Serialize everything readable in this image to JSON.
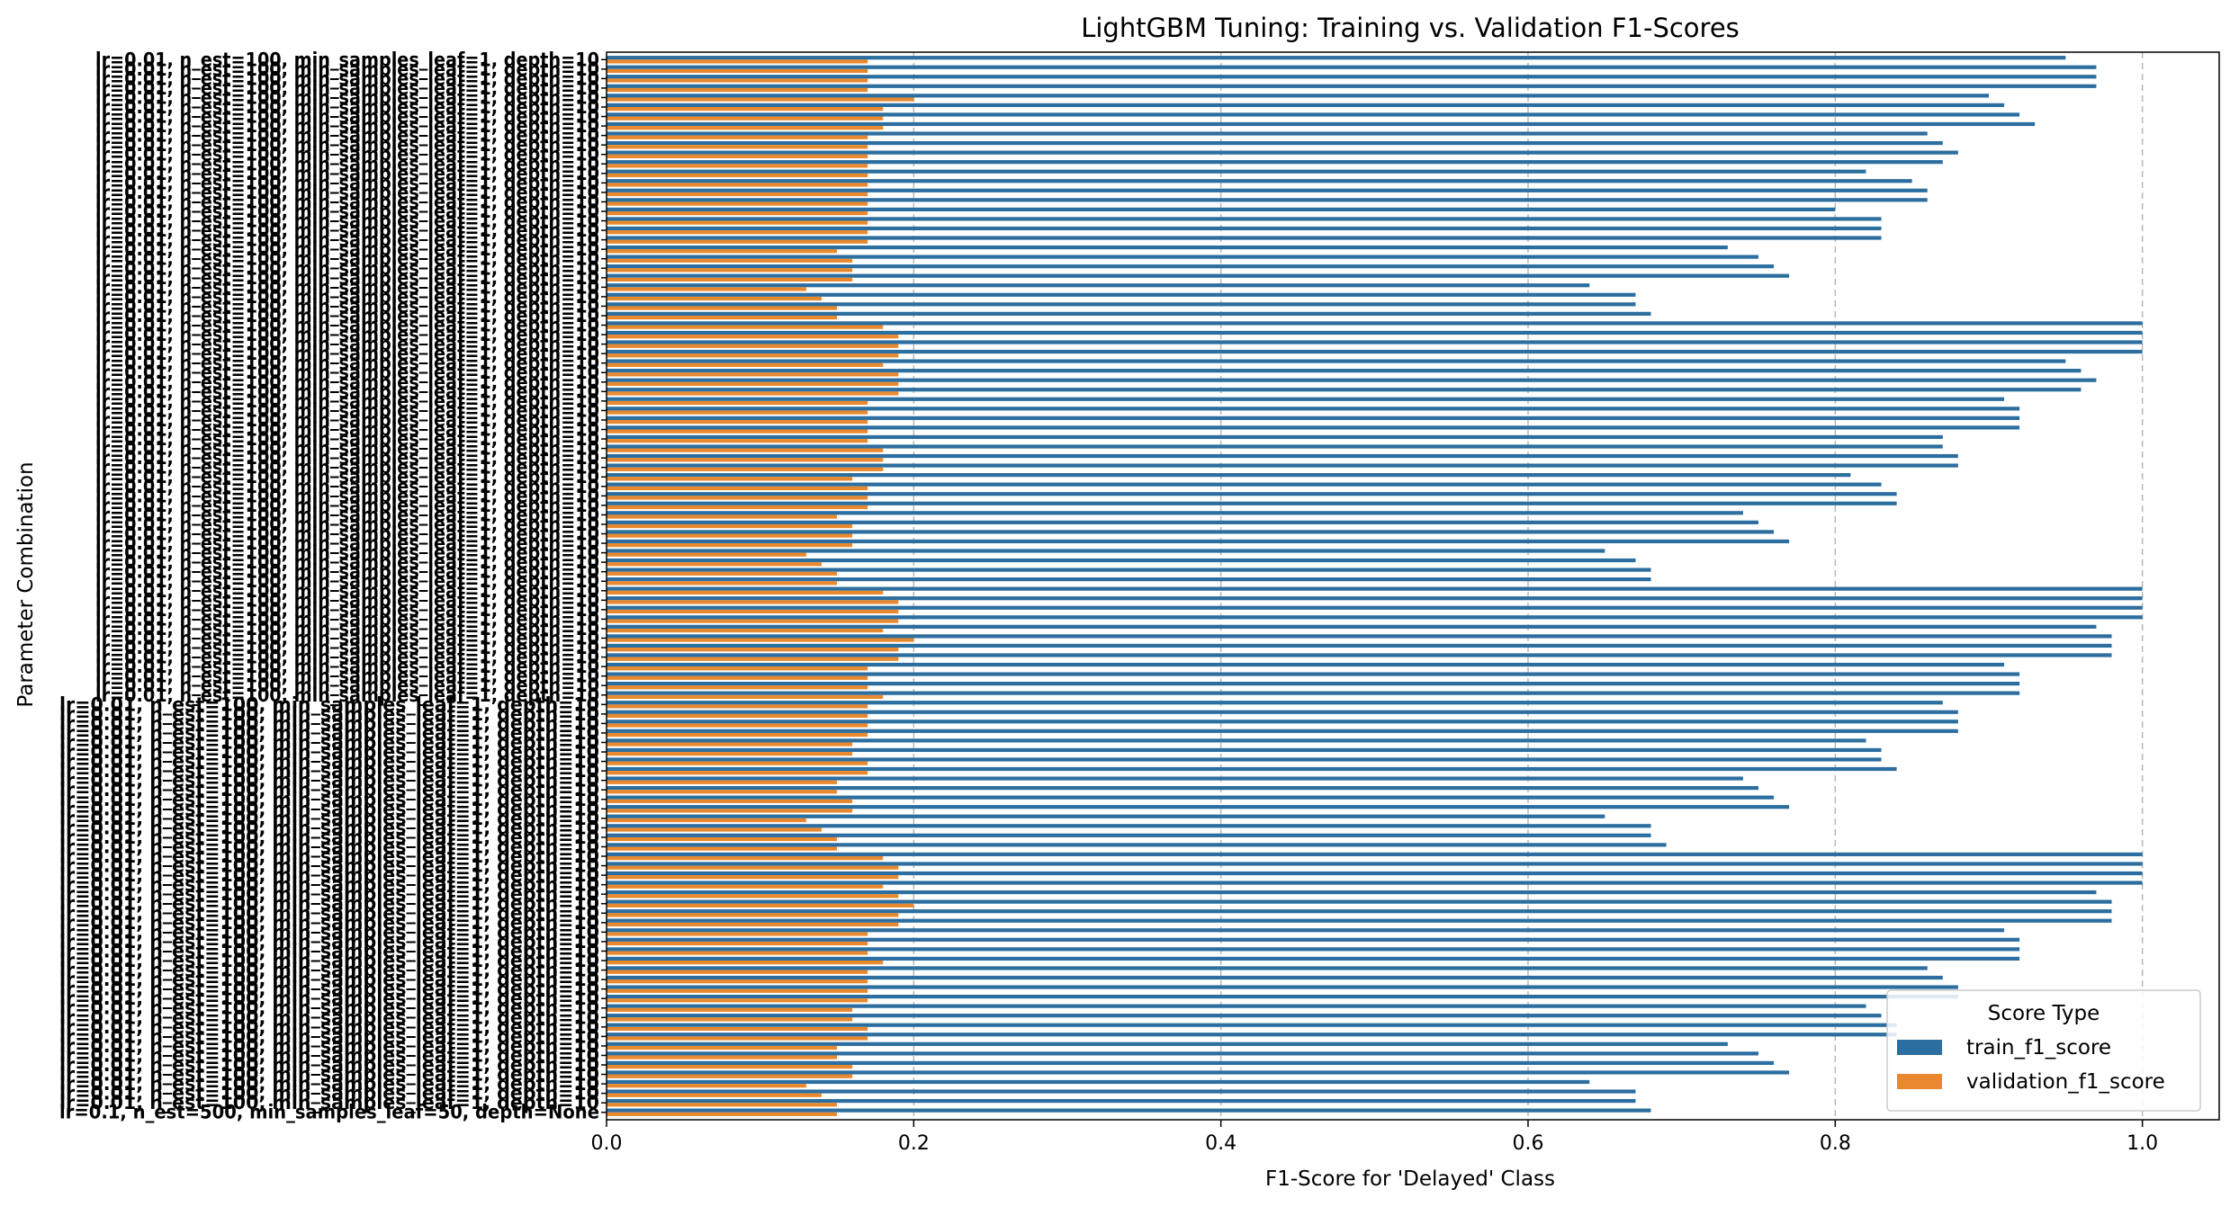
{
  "chart_data": {
    "type": "bar",
    "orientation": "horizontal",
    "title": "LightGBM Tuning: Training vs. Validation F1-Scores",
    "xlabel": "F1-Score for 'Delayed' Class",
    "ylabel": "Parameter Combination",
    "xlim": [
      0,
      1.05
    ],
    "xticks": [
      "0.0",
      "0.2",
      "0.4",
      "0.6",
      "0.8",
      "1.0"
    ],
    "grid": "x-dashed",
    "legend_title": "Score Type",
    "legend_position": "lower-right",
    "category_label_sample": "lr=0.01, n_est=100, min_samples_leaf=1, depth=10",
    "category_label_sample_bottom": "lr=0.1, n_est=500, min_samples_leaf=50, depth=None",
    "series": [
      {
        "name": "train_f1_score",
        "color": "#2c6e9f",
        "values": [
          0.95,
          0.97,
          0.97,
          0.97,
          0.9,
          0.91,
          0.92,
          0.93,
          0.86,
          0.87,
          0.88,
          0.87,
          0.82,
          0.85,
          0.86,
          0.86,
          0.8,
          0.83,
          0.83,
          0.83,
          0.73,
          0.75,
          0.76,
          0.77,
          0.64,
          0.67,
          0.67,
          0.68,
          1.0,
          1.0,
          1.0,
          1.0,
          0.95,
          0.96,
          0.97,
          0.96,
          0.91,
          0.92,
          0.92,
          0.92,
          0.87,
          0.87,
          0.88,
          0.88,
          0.81,
          0.83,
          0.84,
          0.84,
          0.74,
          0.75,
          0.76,
          0.77,
          0.65,
          0.67,
          0.68,
          0.68,
          1.0,
          1.0,
          1.0,
          1.0,
          0.97,
          0.98,
          0.98,
          0.98,
          0.91,
          0.92,
          0.92,
          0.92,
          0.87,
          0.88,
          0.88,
          0.88,
          0.82,
          0.83,
          0.83,
          0.84,
          0.74,
          0.75,
          0.76,
          0.77,
          0.65,
          0.68,
          0.68,
          0.69,
          1.0,
          1.0,
          1.0,
          1.0,
          0.97,
          0.98,
          0.98,
          0.98,
          0.91,
          0.92,
          0.92,
          0.92,
          0.86,
          0.87,
          0.88,
          0.88,
          0.82,
          0.83,
          0.84,
          0.84,
          0.73,
          0.75,
          0.76,
          0.77,
          0.64,
          0.67,
          0.67,
          0.68
        ]
      },
      {
        "name": "validation_f1_score",
        "color": "#e8892f",
        "values": [
          0.17,
          0.17,
          0.17,
          0.17,
          0.2,
          0.18,
          0.18,
          0.18,
          0.17,
          0.17,
          0.17,
          0.17,
          0.17,
          0.17,
          0.17,
          0.17,
          0.17,
          0.17,
          0.17,
          0.17,
          0.15,
          0.16,
          0.16,
          0.16,
          0.13,
          0.14,
          0.15,
          0.15,
          0.18,
          0.19,
          0.19,
          0.19,
          0.18,
          0.19,
          0.19,
          0.19,
          0.17,
          0.17,
          0.17,
          0.17,
          0.17,
          0.18,
          0.18,
          0.18,
          0.16,
          0.17,
          0.17,
          0.17,
          0.15,
          0.16,
          0.16,
          0.16,
          0.13,
          0.14,
          0.15,
          0.15,
          0.18,
          0.19,
          0.19,
          0.19,
          0.18,
          0.2,
          0.19,
          0.19,
          0.17,
          0.17,
          0.17,
          0.18,
          0.17,
          0.17,
          0.17,
          0.17,
          0.16,
          0.16,
          0.17,
          0.17,
          0.15,
          0.15,
          0.16,
          0.16,
          0.13,
          0.14,
          0.15,
          0.15,
          0.18,
          0.19,
          0.19,
          0.18,
          0.19,
          0.2,
          0.19,
          0.19,
          0.17,
          0.17,
          0.17,
          0.18,
          0.17,
          0.17,
          0.17,
          0.17,
          0.16,
          0.16,
          0.17,
          0.17,
          0.15,
          0.15,
          0.16,
          0.16,
          0.13,
          0.14,
          0.15,
          0.15
        ]
      }
    ]
  }
}
